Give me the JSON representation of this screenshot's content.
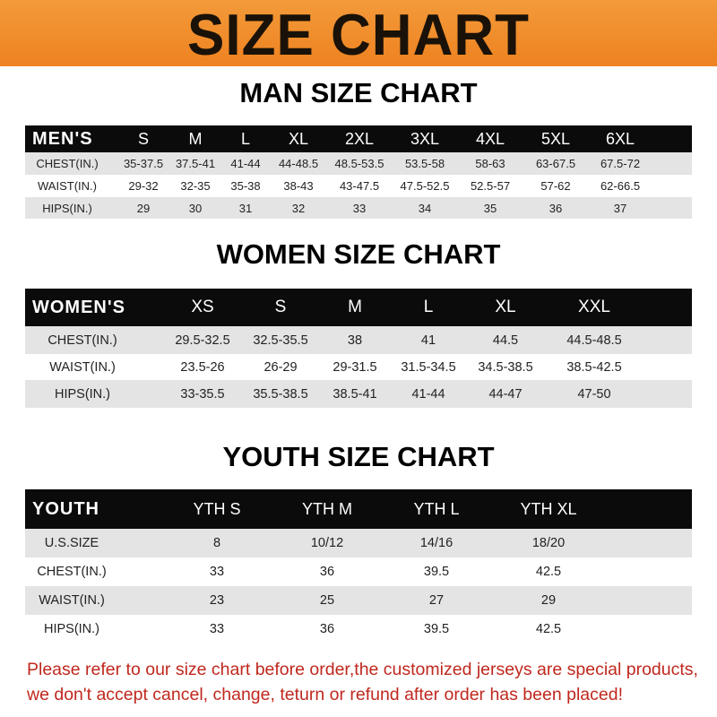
{
  "banner": {
    "title": "SIZE CHART",
    "color": "#f08a24"
  },
  "men": {
    "title": "MAN SIZE CHART",
    "header": [
      "MEN'S",
      "S",
      "M",
      "L",
      "XL",
      "2XL",
      "3XL",
      "4XL",
      "5XL",
      "6XL"
    ],
    "rows": [
      [
        "CHEST(IN.)",
        "35-37.5",
        "37.5-41",
        "41-44",
        "44-48.5",
        "48.5-53.5",
        "53.5-58",
        "58-63",
        "63-67.5",
        "67.5-72"
      ],
      [
        "WAIST(IN.)",
        "29-32",
        "32-35",
        "35-38",
        "38-43",
        "43-47.5",
        "47.5-52.5",
        "52.5-57",
        "57-62",
        "62-66.5"
      ],
      [
        "HIPS(IN.)",
        "29",
        "30",
        "31",
        "32",
        "33",
        "34",
        "35",
        "36",
        "37"
      ]
    ]
  },
  "women": {
    "title": "WOMEN SIZE CHART",
    "header": [
      "WOMEN'S",
      "XS",
      "S",
      "M",
      "L",
      "XL",
      "XXL"
    ],
    "rows": [
      [
        "CHEST(IN.)",
        "29.5-32.5",
        "32.5-35.5",
        "38",
        "41",
        "44.5",
        "44.5-48.5"
      ],
      [
        "WAIST(IN.)",
        "23.5-26",
        "26-29",
        "29-31.5",
        "31.5-34.5",
        "34.5-38.5",
        "38.5-42.5"
      ],
      [
        "HIPS(IN.)",
        "33-35.5",
        "35.5-38.5",
        "38.5-41",
        "41-44",
        "44-47",
        "47-50"
      ]
    ]
  },
  "youth": {
    "title": "YOUTH SIZE CHART",
    "header": [
      "YOUTH",
      "YTH S",
      "YTH M",
      "YTH L",
      "YTH XL"
    ],
    "rows": [
      [
        "U.S.SIZE",
        "8",
        "10/12",
        "14/16",
        "18/20"
      ],
      [
        "CHEST(IN.)",
        "33",
        "36",
        "39.5",
        "42.5"
      ],
      [
        "WAIST(IN.)",
        "23",
        "25",
        "27",
        "29"
      ],
      [
        "HIPS(IN.)",
        "33",
        "36",
        "39.5",
        "42.5"
      ]
    ]
  },
  "notice": {
    "line1": "Please refer to our size chart before order,the customized jerseys are special products,",
    "line2": "we don't accept cancel, change, teturn or refund after order has been placed!",
    "color": "#c0281e"
  }
}
